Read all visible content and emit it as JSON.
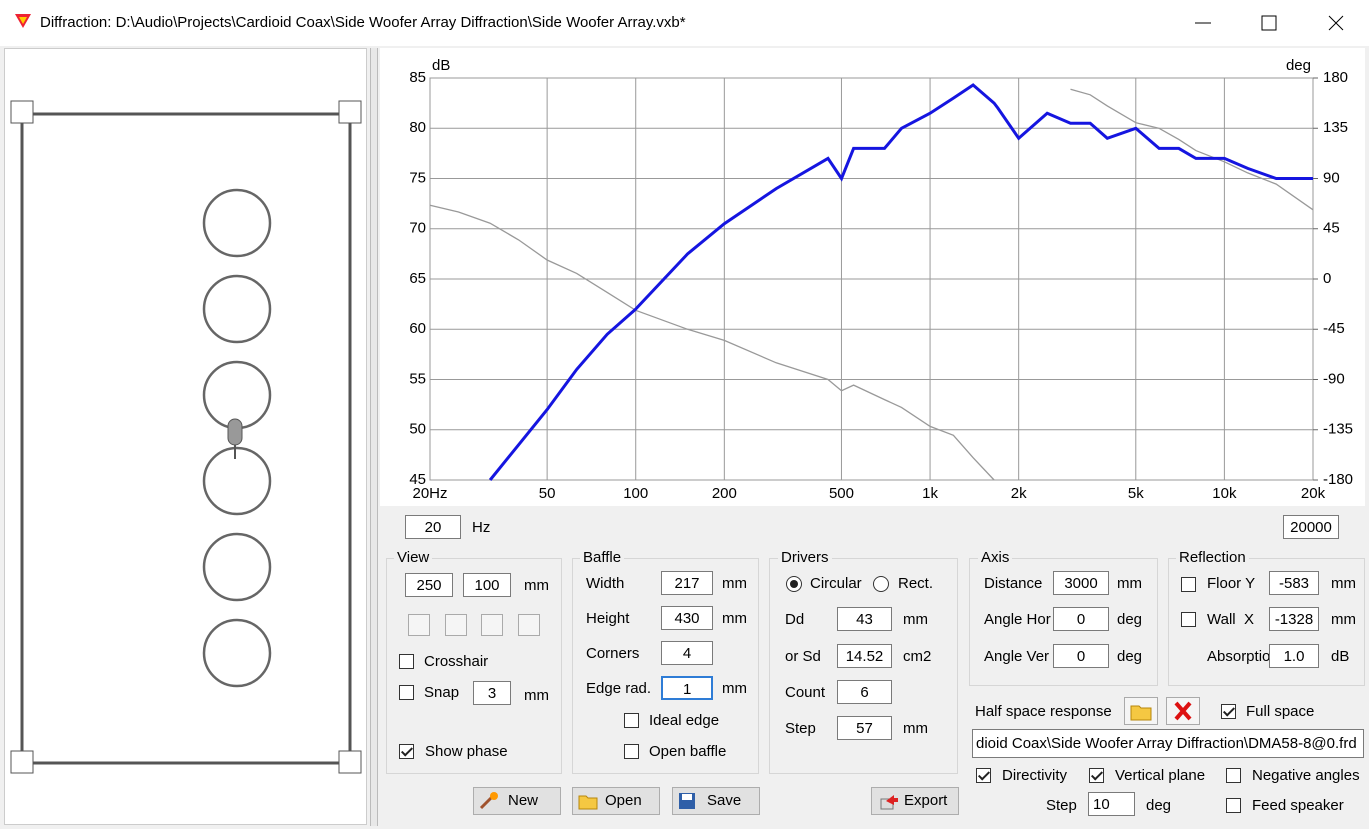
{
  "window": {
    "title": "Diffraction: D:\\Audio\\Projects\\Cardioid Coax\\Side Woofer Array Diffraction\\Side Woofer Array.vxb*"
  },
  "chart_data": {
    "type": "line",
    "y_label": "dB",
    "y2_label": "deg",
    "x_scale": "log",
    "grid": true,
    "xlim": [
      20,
      20000
    ],
    "xticks": [
      {
        "value": 20,
        "label": "20Hz"
      },
      50,
      100,
      200,
      500,
      {
        "value": 1000,
        "label": "1k"
      },
      {
        "value": 2000,
        "label": "2k"
      },
      {
        "value": 5000,
        "label": "5k"
      },
      {
        "value": 10000,
        "label": "10k"
      },
      {
        "value": 20000,
        "label": "20k"
      }
    ],
    "ylim": [
      45,
      85
    ],
    "yticks": [
      45,
      50,
      55,
      60,
      65,
      70,
      75,
      80,
      85
    ],
    "y2lim": [
      -180,
      180
    ],
    "y2ticks": [
      -180,
      -135,
      -90,
      -45,
      0,
      45,
      90,
      135,
      180
    ],
    "x": [
      20,
      25,
      32,
      40,
      50,
      63,
      80,
      100,
      150,
      200,
      300,
      450,
      500,
      550,
      700,
      800,
      1000,
      1200,
      1400,
      1650,
      1700,
      2000,
      2500,
      3000,
      3500,
      4000,
      5000,
      6000,
      7000,
      8000,
      10000,
      12000,
      15000,
      20000
    ],
    "series": [
      {
        "color": "#1515e0",
        "values": [
          null,
          null,
          45,
          48.5,
          52,
          56,
          59.5,
          62,
          67.5,
          70.5,
          74,
          77,
          75,
          78,
          78,
          80,
          81.5,
          83,
          84.3,
          82.5,
          82,
          79,
          81.5,
          80.5,
          80.5,
          79,
          80,
          78,
          78,
          77,
          77,
          76,
          75,
          75
        ]
      },
      {
        "color": "#999999",
        "axis": "y2",
        "values": [
          66,
          60,
          50,
          35,
          17,
          5,
          -12,
          -28,
          -45,
          -55,
          -75,
          -90,
          -100,
          -95,
          -108,
          -115,
          -132,
          -140,
          -160,
          -180,
          null,
          null,
          null,
          170,
          165,
          155,
          140,
          135,
          125,
          115,
          105,
          95,
          85,
          62
        ]
      }
    ]
  },
  "freq_range": {
    "min": "20",
    "unit": "Hz",
    "max": "20000"
  },
  "view": {
    "title": "View",
    "width": "250",
    "height": "100",
    "unit": "mm",
    "crosshair": "Crosshair",
    "snap": "Snap",
    "snap_value": "3",
    "snap_unit": "mm",
    "show_phase": "Show phase"
  },
  "baffle": {
    "title": "Baffle",
    "rows": [
      [
        "Width",
        "217",
        "mm"
      ],
      [
        "Height",
        "430",
        "mm"
      ],
      [
        "Corners",
        "4"
      ],
      [
        "Edge rad.",
        "1",
        "mm"
      ]
    ],
    "ideal_edge": "Ideal edge",
    "open_baffle": "Open baffle"
  },
  "drivers": {
    "title": "Drivers",
    "circular": "Circular",
    "rect": "Rect.",
    "rows": [
      [
        "Dd",
        "43",
        "mm"
      ],
      [
        "or Sd",
        "14.52",
        "cm2"
      ],
      [
        "Count",
        "6"
      ],
      [
        "Step",
        "57",
        "mm"
      ]
    ]
  },
  "axis": {
    "title": "Axis",
    "rows": [
      [
        "Distance",
        "3000",
        "mm"
      ],
      [
        "Angle Hor",
        "0",
        "deg"
      ],
      [
        "Angle Ver",
        "0",
        "deg"
      ]
    ]
  },
  "reflection": {
    "title": "Reflection",
    "rows": [
      [
        "Floor Y",
        "-583",
        "mm"
      ],
      [
        "Wall  X",
        "-1328",
        "mm"
      ],
      [
        "Absorption",
        "1.0",
        "dB"
      ]
    ]
  },
  "half_space": {
    "label": "Half space response",
    "full_space": "Full space",
    "path": "dioid Coax\\Side Woofer Array Diffraction\\DMA58-8@0.frd"
  },
  "options": {
    "directivity": "Directivity",
    "vertical_plane": "Vertical plane",
    "negative_angles": "Negative angles",
    "step": "Step",
    "step_value": "10",
    "step_unit": "deg",
    "feed_speaker": "Feed speaker"
  },
  "buttons": [
    "New",
    "Open",
    "Save",
    "Export"
  ]
}
